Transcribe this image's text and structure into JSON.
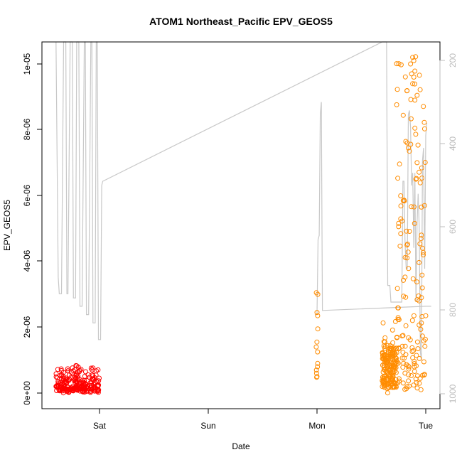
{
  "chart_data": {
    "type": "scatter",
    "title": "ATOM1 Northeast_Pacific EPV_GEOS5",
    "xlabel": "Date",
    "ylabel": "EPV_GEOS5",
    "x_ticks": [
      "Sat",
      "Sun",
      "Mon",
      "Tue"
    ],
    "y_ticks": [
      "0e+00",
      "2e-06",
      "4e-06",
      "6e-06",
      "8e-06",
      "1e-05"
    ],
    "y2_ticks": [
      "200",
      "400",
      "600",
      "800",
      "1000"
    ],
    "colors": {
      "early_points": "#ff0000",
      "late_points": "#ff8c00",
      "pressure_line": "#c8c8c8",
      "axis": "#000000",
      "right_axis": "#bdbdbd"
    }
  }
}
